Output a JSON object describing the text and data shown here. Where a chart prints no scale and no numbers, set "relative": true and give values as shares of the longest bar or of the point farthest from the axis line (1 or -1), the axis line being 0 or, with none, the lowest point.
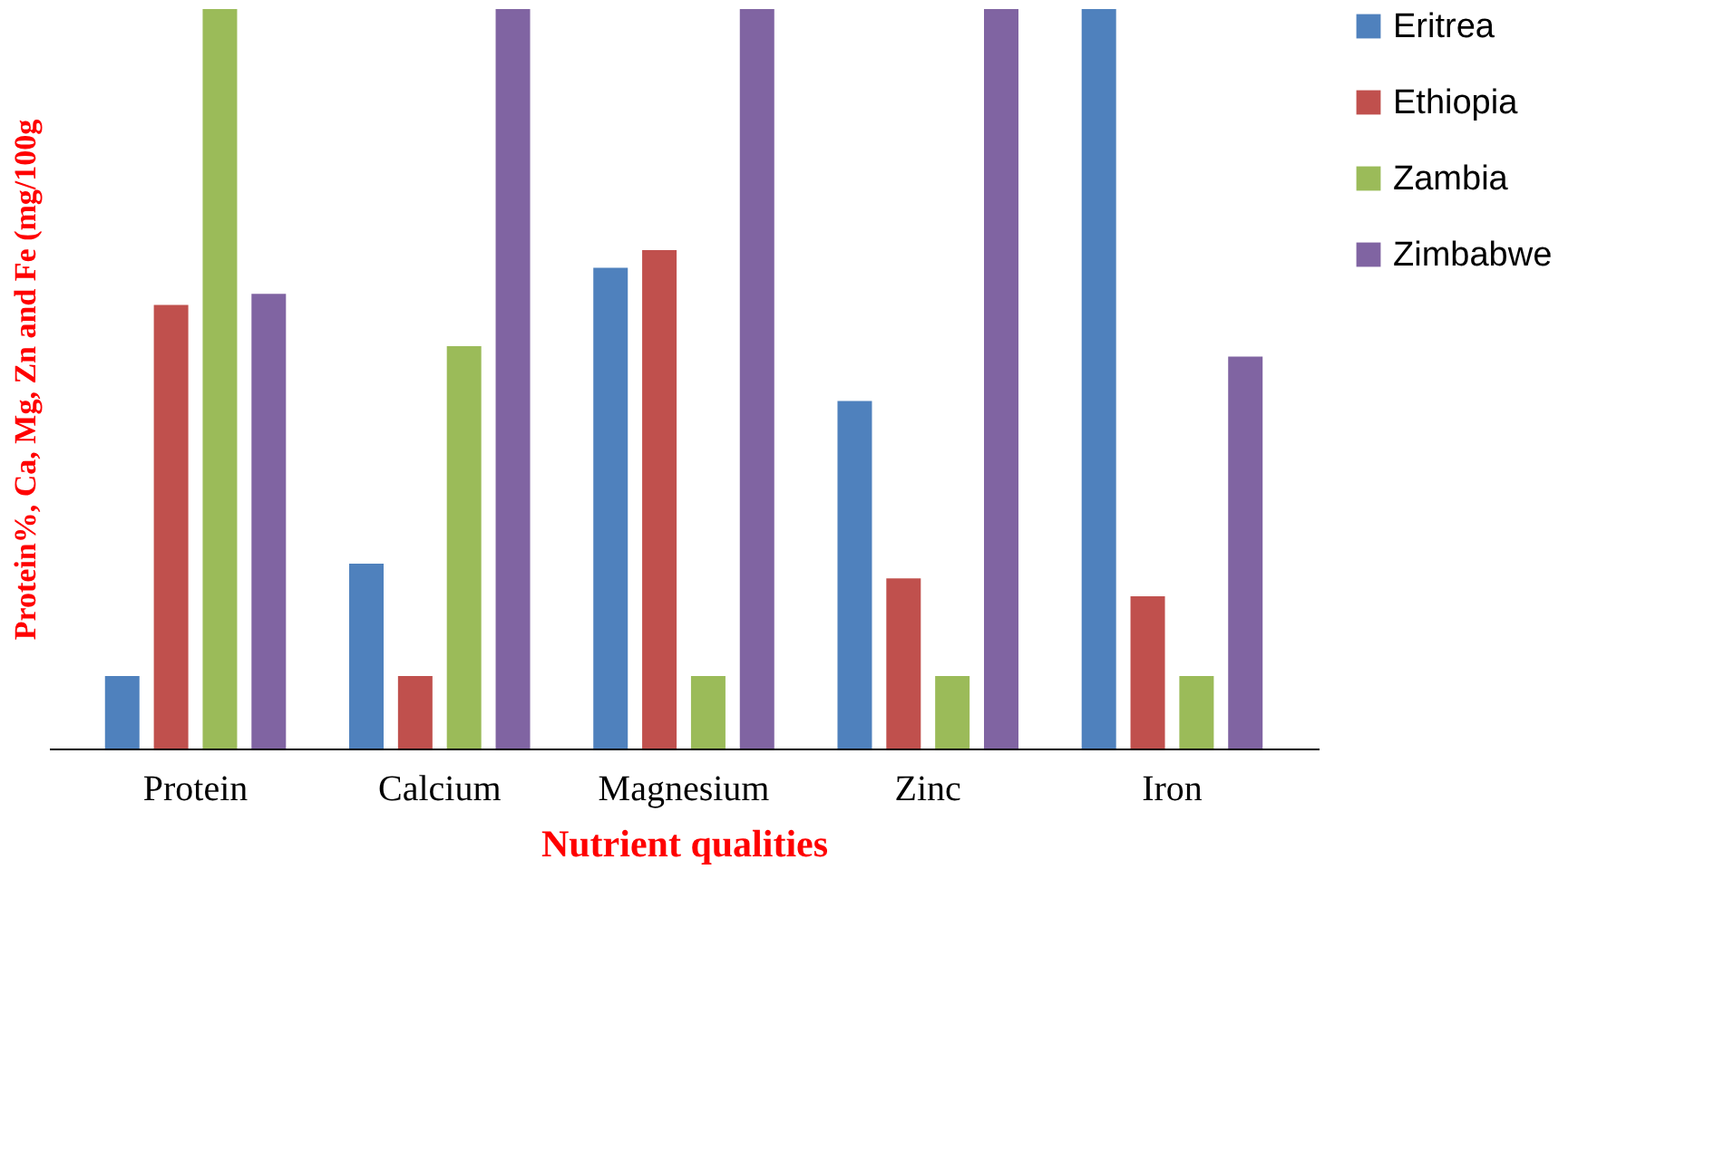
{
  "chart_data": {
    "type": "bar",
    "relative": true,
    "xlabel": "Nutrient qualities",
    "ylabel": "Protein%, Ca, Mg, Zn and Fe (mg/100g",
    "categories": [
      "Protein",
      "Calcium",
      "Magnesium",
      "Zinc",
      "Iron"
    ],
    "legend": "right",
    "grid": false,
    "series": [
      {
        "name": "Eritrea",
        "color": "#4f81bd",
        "values": [
          0.098,
          0.25,
          0.65,
          0.47,
          1
        ]
      },
      {
        "name": "Ethiopia",
        "color": "#c0504d",
        "values": [
          0.6,
          0.098,
          0.674,
          0.23,
          0.206
        ]
      },
      {
        "name": "Zambia",
        "color": "#9bbb59",
        "values": [
          1,
          0.544,
          0.098,
          0.098,
          0.098
        ]
      },
      {
        "name": "Zimbabwe",
        "color": "#8064a2",
        "values": [
          0.615,
          1,
          1,
          1,
          0.53
        ]
      }
    ]
  }
}
